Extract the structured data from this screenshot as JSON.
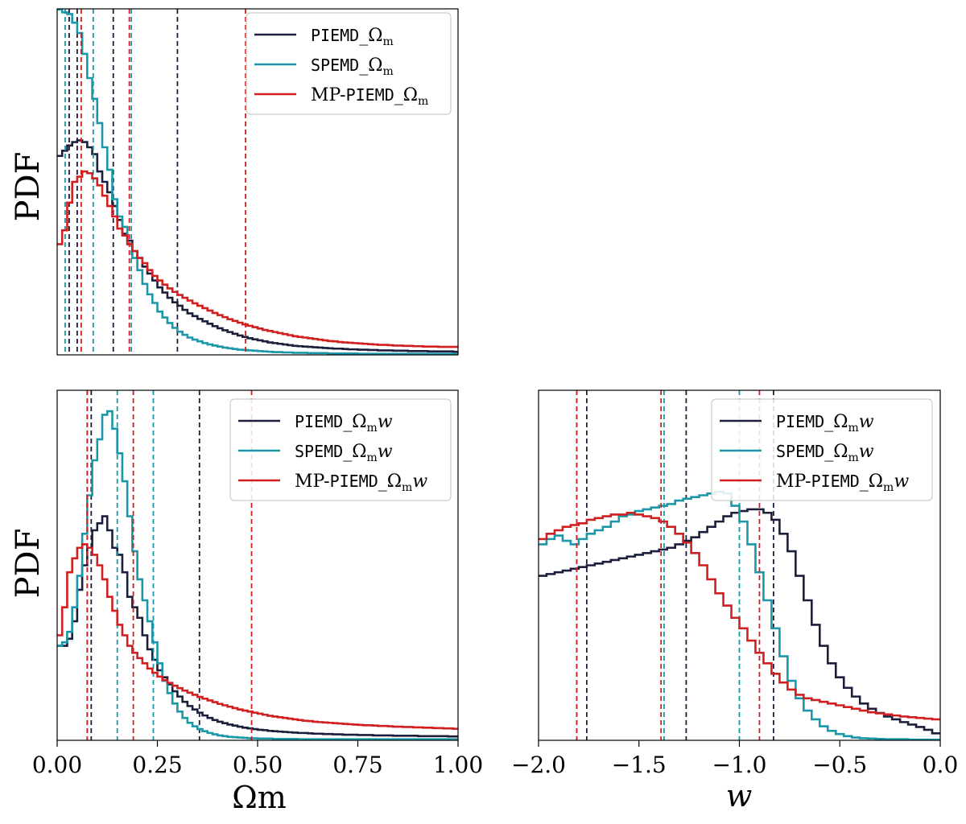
{
  "colors": {
    "PIEMD": "#1b1f3b",
    "SPEMD": "#1a97a8",
    "MP-PIEMD": "#d11f1f"
  },
  "chart_data": [
    {
      "id": "top-left",
      "type": "histogram",
      "xlim": [
        0,
        1
      ],
      "ylim": [
        0,
        1
      ],
      "ylabel": "PDF",
      "xlabel": "",
      "show_xticks": false,
      "legend_position": "top-right",
      "series": [
        {
          "name": "PIEMD_Ωm",
          "name_code": "PIEMD",
          "name_math": "Ωm",
          "color_key": "PIEMD",
          "x_min": 0,
          "x_max": 1,
          "values": [
            0.575,
            0.59,
            0.605,
            0.615,
            0.62,
            0.615,
            0.6,
            0.58,
            0.53,
            0.5,
            0.47,
            0.43,
            0.39,
            0.35,
            0.33,
            0.3,
            0.28,
            0.255,
            0.235,
            0.215,
            0.195,
            0.18,
            0.165,
            0.152,
            0.142,
            0.13,
            0.12,
            0.112,
            0.104,
            0.097,
            0.09,
            0.083,
            0.077,
            0.071,
            0.066,
            0.061,
            0.056,
            0.052,
            0.048,
            0.045,
            0.042,
            0.039,
            0.036,
            0.034,
            0.032,
            0.03,
            0.028,
            0.026,
            0.025,
            0.024,
            0.023,
            0.022,
            0.021,
            0.02,
            0.019,
            0.018,
            0.018,
            0.017,
            0.016,
            0.016,
            0.015,
            0.015,
            0.014,
            0.014,
            0.013,
            0.013,
            0.013,
            0.012,
            0.012,
            0.012,
            0.011,
            0.011,
            0.011,
            0.011,
            0.01,
            0.01,
            0.01,
            0.01,
            0.01,
            0.009
          ],
          "ci_lines": [
            0.03,
            0.05,
            0.14,
            0.3
          ]
        },
        {
          "name": "SPEMD_Ωm",
          "name_code": "SPEMD",
          "name_math": "Ωm",
          "color_key": "SPEMD",
          "x_min": 0,
          "x_max": 1,
          "values": [
            0.998,
            0.99,
            0.985,
            0.96,
            0.93,
            0.87,
            0.8,
            0.74,
            0.67,
            0.6,
            0.535,
            0.45,
            0.4,
            0.37,
            0.32,
            0.28,
            0.245,
            0.205,
            0.175,
            0.15,
            0.125,
            0.108,
            0.092,
            0.078,
            0.067,
            0.058,
            0.05,
            0.044,
            0.039,
            0.034,
            0.03,
            0.027,
            0.024,
            0.021,
            0.019,
            0.017,
            0.015,
            0.014,
            0.013,
            0.012,
            0.011,
            0.01,
            0.009,
            0.008,
            0.008,
            0.007,
            0.007,
            0.006,
            0.006,
            0.006,
            0.005,
            0.005,
            0.005,
            0.005,
            0.004,
            0.004,
            0.004,
            0.004,
            0.004,
            0.004,
            0.003,
            0.003,
            0.003,
            0.003,
            0.003,
            0.003,
            0.003,
            0.003,
            0.003,
            0.003,
            0.003,
            0.003,
            0.003,
            0.003,
            0.003,
            0.003,
            0.003,
            0.003,
            0.003,
            0.003
          ],
          "ci_lines": [
            0.02,
            0.09,
            0.185
          ]
        },
        {
          "name": "MP-PIEMD_Ωm",
          "name_code": "MP-PIEMD",
          "name_math": "Ωm",
          "color_key": "MP-PIEMD",
          "x_min": 0,
          "x_max": 1,
          "values": [
            0.32,
            0.36,
            0.44,
            0.5,
            0.515,
            0.53,
            0.525,
            0.51,
            0.49,
            0.46,
            0.43,
            0.4,
            0.365,
            0.345,
            0.32,
            0.3,
            0.28,
            0.265,
            0.245,
            0.228,
            0.215,
            0.203,
            0.192,
            0.182,
            0.173,
            0.165,
            0.157,
            0.149,
            0.142,
            0.135,
            0.128,
            0.121,
            0.115,
            0.109,
            0.103,
            0.098,
            0.093,
            0.088,
            0.084,
            0.08,
            0.076,
            0.072,
            0.069,
            0.066,
            0.063,
            0.06,
            0.057,
            0.054,
            0.052,
            0.05,
            0.048,
            0.046,
            0.044,
            0.042,
            0.04,
            0.039,
            0.037,
            0.036,
            0.035,
            0.034,
            0.033,
            0.032,
            0.031,
            0.03,
            0.029,
            0.029,
            0.028,
            0.027,
            0.027,
            0.026,
            0.026,
            0.025,
            0.025,
            0.024,
            0.024,
            0.024,
            0.023,
            0.023,
            0.023,
            0.023
          ],
          "ci_lines": [
            0.06,
            0.18,
            0.47
          ]
        }
      ]
    },
    {
      "id": "bottom-left",
      "type": "histogram",
      "xlim": [
        0,
        1
      ],
      "ylim": [
        0,
        1
      ],
      "ylabel": "PDF",
      "xlabel": "Ωm",
      "xticks": [
        "0.00",
        "0.25",
        "0.50",
        "0.75",
        "1.00"
      ],
      "xtick_values": [
        0,
        0.25,
        0.5,
        0.75,
        1.0
      ],
      "show_xticks": true,
      "legend_position": "top-right",
      "series": [
        {
          "name": "PIEMD_Ωmw",
          "name_code": "PIEMD",
          "name_math": "Ωmw",
          "color_key": "PIEMD",
          "x_min": 0,
          "x_max": 1,
          "values": [
            0.27,
            0.27,
            0.29,
            0.34,
            0.43,
            0.5,
            0.55,
            0.6,
            0.62,
            0.64,
            0.6,
            0.55,
            0.53,
            0.48,
            0.41,
            0.38,
            0.35,
            0.3,
            0.26,
            0.23,
            0.2,
            0.18,
            0.16,
            0.14,
            0.125,
            0.11,
            0.098,
            0.088,
            0.079,
            0.071,
            0.064,
            0.058,
            0.053,
            0.049,
            0.045,
            0.042,
            0.039,
            0.036,
            0.034,
            0.032,
            0.03,
            0.029,
            0.027,
            0.026,
            0.025,
            0.024,
            0.023,
            0.022,
            0.021,
            0.021,
            0.02,
            0.019,
            0.019,
            0.018,
            0.018,
            0.017,
            0.017,
            0.016,
            0.016,
            0.016,
            0.015,
            0.015,
            0.015,
            0.014,
            0.014,
            0.014,
            0.014,
            0.013,
            0.013,
            0.013,
            0.013,
            0.013,
            0.012,
            0.012,
            0.012,
            0.012,
            0.012,
            0.012,
            0.011,
            0.011
          ],
          "ci_lines": [
            0.085,
            0.355
          ]
        },
        {
          "name": "SPEMD_Ωmw",
          "name_code": "SPEMD",
          "name_math": "Ωmw",
          "color_key": "SPEMD",
          "x_min": 0,
          "x_max": 1,
          "values": [
            0.27,
            0.28,
            0.31,
            0.38,
            0.47,
            0.59,
            0.7,
            0.8,
            0.86,
            0.93,
            0.94,
            0.89,
            0.82,
            0.74,
            0.64,
            0.54,
            0.46,
            0.4,
            0.34,
            0.28,
            0.22,
            0.17,
            0.135,
            0.105,
            0.082,
            0.064,
            0.05,
            0.04,
            0.032,
            0.026,
            0.021,
            0.017,
            0.014,
            0.012,
            0.01,
            0.009,
            0.008,
            0.007,
            0.006,
            0.006,
            0.005,
            0.005,
            0.005,
            0.004,
            0.004,
            0.004,
            0.004,
            0.004,
            0.003,
            0.003,
            0.003,
            0.003,
            0.003,
            0.003,
            0.003,
            0.003,
            0.003,
            0.003,
            0.003,
            0.003,
            0.003,
            0.003,
            0.003,
            0.003,
            0.003,
            0.003,
            0.003,
            0.003,
            0.003,
            0.003,
            0.003,
            0.003,
            0.003,
            0.003,
            0.003,
            0.003,
            0.003,
            0.003,
            0.003,
            0.003
          ],
          "ci_lines": [
            0.075,
            0.15,
            0.24
          ]
        },
        {
          "name": "MP-PIEMD_Ωmw",
          "name_code": "MP-PIEMD",
          "name_math": "Ωmw",
          "color_key": "MP-PIEMD",
          "x_min": 0,
          "x_max": 1,
          "values": [
            0.3,
            0.38,
            0.48,
            0.52,
            0.55,
            0.56,
            0.55,
            0.53,
            0.5,
            0.46,
            0.41,
            0.37,
            0.33,
            0.3,
            0.27,
            0.25,
            0.235,
            0.22,
            0.205,
            0.193,
            0.182,
            0.172,
            0.164,
            0.156,
            0.149,
            0.142,
            0.136,
            0.13,
            0.124,
            0.119,
            0.114,
            0.109,
            0.104,
            0.1,
            0.096,
            0.092,
            0.088,
            0.085,
            0.082,
            0.079,
            0.076,
            0.073,
            0.07,
            0.068,
            0.066,
            0.064,
            0.062,
            0.06,
            0.058,
            0.056,
            0.055,
            0.053,
            0.052,
            0.051,
            0.05,
            0.049,
            0.048,
            0.047,
            0.046,
            0.045,
            0.044,
            0.043,
            0.043,
            0.042,
            0.041,
            0.041,
            0.04,
            0.039,
            0.039,
            0.038,
            0.038,
            0.037,
            0.037,
            0.036,
            0.036,
            0.035,
            0.035,
            0.034,
            0.034,
            0.033
          ],
          "ci_lines": [
            0.075,
            0.19,
            0.485
          ]
        }
      ]
    },
    {
      "id": "bottom-right",
      "type": "histogram",
      "xlim": [
        -2.0,
        0.0
      ],
      "ylim": [
        0,
        1
      ],
      "ylabel": "",
      "xlabel": "w",
      "xticks": [
        "−2.0",
        "−1.5",
        "−1.0",
        "−0.5",
        "0.0"
      ],
      "xtick_values": [
        -2.0,
        -1.5,
        -1.0,
        -0.5,
        0.0
      ],
      "show_xticks": true,
      "legend_position": "top-right",
      "series": [
        {
          "name": "PIEMD_Ωmw",
          "name_code": "PIEMD",
          "name_math": "Ωmw",
          "color_key": "PIEMD",
          "x_min": -2.0,
          "x_max": 0.0,
          "values": [
            0.47,
            0.475,
            0.48,
            0.485,
            0.49,
            0.495,
            0.5,
            0.505,
            0.51,
            0.515,
            0.52,
            0.525,
            0.53,
            0.535,
            0.54,
            0.545,
            0.55,
            0.56,
            0.57,
            0.58,
            0.595,
            0.61,
            0.625,
            0.64,
            0.65,
            0.655,
            0.66,
            0.66,
            0.65,
            0.63,
            0.59,
            0.54,
            0.47,
            0.4,
            0.33,
            0.27,
            0.22,
            0.18,
            0.15,
            0.125,
            0.105,
            0.09,
            0.078,
            0.068,
            0.06,
            0.052,
            0.045,
            0.038,
            0.03,
            0.02
          ],
          "ci_lines": [
            -1.76,
            -1.265,
            -0.83
          ]
        },
        {
          "name": "SPEMD_Ωmw",
          "name_code": "SPEMD",
          "name_math": "Ωmw",
          "color_key": "SPEMD",
          "x_min": -2.0,
          "x_max": 0.0,
          "values": [
            0.56,
            0.575,
            0.585,
            0.57,
            0.56,
            0.575,
            0.59,
            0.6,
            0.61,
            0.625,
            0.64,
            0.645,
            0.655,
            0.66,
            0.665,
            0.67,
            0.675,
            0.685,
            0.69,
            0.695,
            0.7,
            0.705,
            0.71,
            0.705,
            0.67,
            0.625,
            0.56,
            0.48,
            0.4,
            0.32,
            0.24,
            0.17,
            0.12,
            0.085,
            0.06,
            0.04,
            0.027,
            0.018,
            0.012,
            0.008,
            0.006,
            0.005,
            0.004,
            0.003,
            0.003,
            0.003,
            0.002,
            0.002,
            0.002,
            0.002
          ],
          "ci_lines": [
            -1.81,
            -1.375,
            -1.0
          ]
        },
        {
          "name": "MP-PIEMD_Ωmw",
          "name_code": "MP-PIEMD",
          "name_math": "Ωmw",
          "color_key": "MP-PIEMD",
          "x_min": -2.0,
          "x_max": 0.0,
          "values": [
            0.575,
            0.59,
            0.6,
            0.61,
            0.615,
            0.62,
            0.63,
            0.635,
            0.64,
            0.645,
            0.645,
            0.65,
            0.645,
            0.64,
            0.635,
            0.625,
            0.61,
            0.59,
            0.565,
            0.535,
            0.5,
            0.46,
            0.42,
            0.385,
            0.35,
            0.32,
            0.285,
            0.25,
            0.22,
            0.19,
            0.165,
            0.145,
            0.13,
            0.12,
            0.115,
            0.11,
            0.105,
            0.1,
            0.095,
            0.09,
            0.085,
            0.08,
            0.077,
            0.074,
            0.071,
            0.068,
            0.066,
            0.064,
            0.062,
            0.06
          ],
          "ci_lines": [
            -1.81,
            -1.39,
            -0.9
          ]
        }
      ]
    }
  ]
}
